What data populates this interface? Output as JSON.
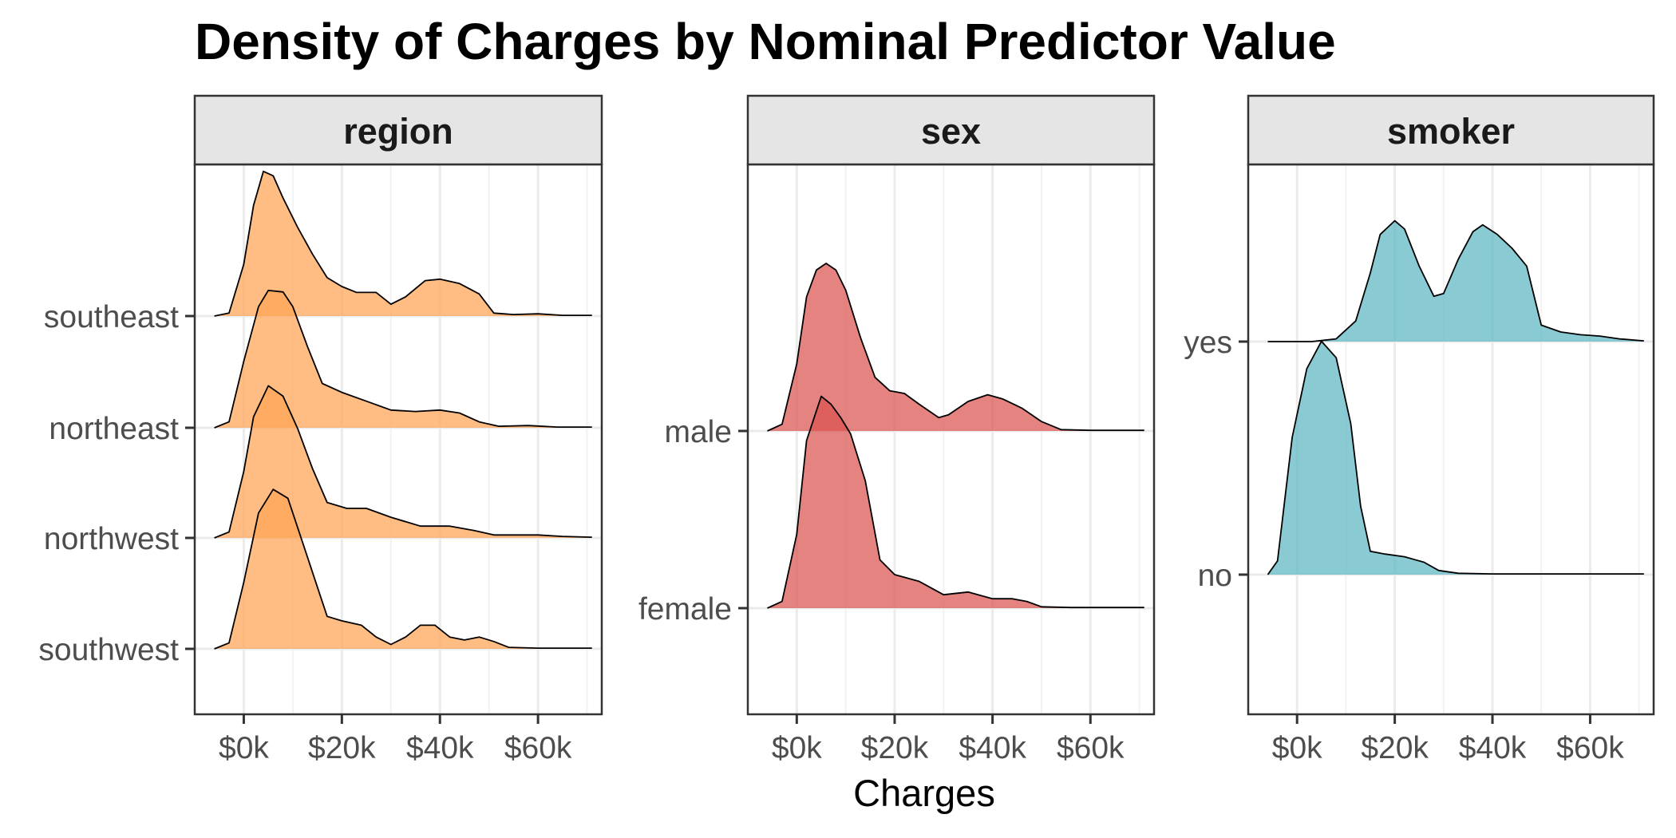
{
  "chart_data": {
    "type": "area",
    "subtype": "ridgeline-density",
    "title": "Density of Charges by Nominal Predictor Value",
    "xlabel": "Charges",
    "ylabel": "",
    "xlim": [
      -10000,
      73000
    ],
    "x_ticks": [
      0,
      20000,
      40000,
      60000
    ],
    "x_tick_labels": [
      "$0k",
      "$20k",
      "$40k",
      "$60k"
    ],
    "grid": true,
    "legend": "none",
    "panels": [
      {
        "strip": "region",
        "color": "#FFA354",
        "categories": [
          "southeast",
          "northeast",
          "northwest",
          "southwest"
        ],
        "series": [
          {
            "name": "southeast",
            "points": [
              [
                -6000,
                0
              ],
              [
                -3000,
                0.02
              ],
              [
                0,
                0.35
              ],
              [
                2000,
                0.75
              ],
              [
                4000,
                0.98
              ],
              [
                6000,
                0.95
              ],
              [
                8000,
                0.8
              ],
              [
                11000,
                0.6
              ],
              [
                14000,
                0.42
              ],
              [
                17000,
                0.26
              ],
              [
                20000,
                0.2
              ],
              [
                23000,
                0.16
              ],
              [
                27000,
                0.16
              ],
              [
                30000,
                0.08
              ],
              [
                33000,
                0.13
              ],
              [
                37000,
                0.24
              ],
              [
                40000,
                0.25
              ],
              [
                44000,
                0.22
              ],
              [
                48000,
                0.15
              ],
              [
                51000,
                0.02
              ],
              [
                55000,
                0.01
              ],
              [
                60000,
                0.015
              ],
              [
                65000,
                0.005
              ],
              [
                71000,
                0.005
              ]
            ]
          },
          {
            "name": "northeast",
            "points": [
              [
                -6000,
                0
              ],
              [
                -3000,
                0.04
              ],
              [
                0,
                0.45
              ],
              [
                3000,
                0.82
              ],
              [
                5000,
                0.93
              ],
              [
                8000,
                0.92
              ],
              [
                10000,
                0.82
              ],
              [
                13000,
                0.55
              ],
              [
                16000,
                0.3
              ],
              [
                20000,
                0.24
              ],
              [
                25000,
                0.18
              ],
              [
                30000,
                0.12
              ],
              [
                35000,
                0.11
              ],
              [
                40000,
                0.12
              ],
              [
                44000,
                0.1
              ],
              [
                48000,
                0.04
              ],
              [
                52000,
                0.01
              ],
              [
                58000,
                0.015
              ],
              [
                64000,
                0.005
              ],
              [
                71000,
                0.005
              ]
            ]
          },
          {
            "name": "northwest",
            "points": [
              [
                -6000,
                0
              ],
              [
                -3000,
                0.04
              ],
              [
                0,
                0.45
              ],
              [
                2000,
                0.82
              ],
              [
                5000,
                1.03
              ],
              [
                8000,
                0.96
              ],
              [
                11000,
                0.74
              ],
              [
                14000,
                0.47
              ],
              [
                17000,
                0.24
              ],
              [
                21000,
                0.2
              ],
              [
                25000,
                0.2
              ],
              [
                30000,
                0.14
              ],
              [
                36000,
                0.08
              ],
              [
                42000,
                0.08
              ],
              [
                47000,
                0.05
              ],
              [
                51000,
                0.02
              ],
              [
                56000,
                0.02
              ],
              [
                60000,
                0.02
              ],
              [
                65000,
                0.01
              ],
              [
                71000,
                0.005
              ]
            ]
          },
          {
            "name": "southwest",
            "points": [
              [
                -6000,
                0
              ],
              [
                -3000,
                0.04
              ],
              [
                0,
                0.45
              ],
              [
                3000,
                0.92
              ],
              [
                6000,
                1.08
              ],
              [
                9000,
                1.02
              ],
              [
                12000,
                0.72
              ],
              [
                15000,
                0.42
              ],
              [
                17000,
                0.22
              ],
              [
                20000,
                0.19
              ],
              [
                24000,
                0.16
              ],
              [
                27000,
                0.08
              ],
              [
                30000,
                0.03
              ],
              [
                33000,
                0.08
              ],
              [
                36000,
                0.16
              ],
              [
                39000,
                0.16
              ],
              [
                42000,
                0.08
              ],
              [
                45000,
                0.06
              ],
              [
                48000,
                0.08
              ],
              [
                51000,
                0.05
              ],
              [
                54000,
                0.01
              ],
              [
                60000,
                0.005
              ],
              [
                71000,
                0.005
              ]
            ]
          }
        ]
      },
      {
        "strip": "sex",
        "color": "#D9534F",
        "categories": [
          "male",
          "female"
        ],
        "series": [
          {
            "name": "male",
            "points": [
              [
                -6000,
                0
              ],
              [
                -3000,
                0.05
              ],
              [
                0,
                0.5
              ],
              [
                2000,
                1.0
              ],
              [
                4000,
                1.2
              ],
              [
                6000,
                1.25
              ],
              [
                8000,
                1.2
              ],
              [
                10000,
                1.05
              ],
              [
                13000,
                0.7
              ],
              [
                16000,
                0.4
              ],
              [
                19000,
                0.3
              ],
              [
                22000,
                0.28
              ],
              [
                25000,
                0.2
              ],
              [
                29000,
                0.1
              ],
              [
                31000,
                0.12
              ],
              [
                35000,
                0.22
              ],
              [
                39000,
                0.27
              ],
              [
                42000,
                0.24
              ],
              [
                46000,
                0.17
              ],
              [
                50000,
                0.07
              ],
              [
                54000,
                0.01
              ],
              [
                60000,
                0.005
              ],
              [
                71000,
                0.005
              ]
            ]
          },
          {
            "name": "female",
            "points": [
              [
                -6000,
                0
              ],
              [
                -3000,
                0.05
              ],
              [
                0,
                0.55
              ],
              [
                2000,
                1.25
              ],
              [
                5000,
                1.58
              ],
              [
                7000,
                1.52
              ],
              [
                9000,
                1.42
              ],
              [
                11000,
                1.3
              ],
              [
                14000,
                0.95
              ],
              [
                17000,
                0.36
              ],
              [
                20000,
                0.25
              ],
              [
                25000,
                0.2
              ],
              [
                30000,
                0.1
              ],
              [
                35000,
                0.12
              ],
              [
                40000,
                0.07
              ],
              [
                44000,
                0.07
              ],
              [
                47000,
                0.05
              ],
              [
                50000,
                0.01
              ],
              [
                56000,
                0.005
              ],
              [
                71000,
                0.005
              ]
            ]
          }
        ]
      },
      {
        "strip": "smoker",
        "color": "#5BB5C2",
        "categories": [
          "yes",
          "no"
        ],
        "series": [
          {
            "name": "yes",
            "points": [
              [
                -6000,
                0
              ],
              [
                3000,
                0
              ],
              [
                8000,
                0.02
              ],
              [
                12000,
                0.15
              ],
              [
                15000,
                0.5
              ],
              [
                17000,
                0.78
              ],
              [
                20000,
                0.88
              ],
              [
                22000,
                0.82
              ],
              [
                25000,
                0.55
              ],
              [
                28000,
                0.33
              ],
              [
                30000,
                0.35
              ],
              [
                33000,
                0.6
              ],
              [
                36000,
                0.8
              ],
              [
                38000,
                0.85
              ],
              [
                41000,
                0.78
              ],
              [
                44000,
                0.68
              ],
              [
                47000,
                0.55
              ],
              [
                50000,
                0.12
              ],
              [
                54000,
                0.07
              ],
              [
                58000,
                0.05
              ],
              [
                62000,
                0.04
              ],
              [
                66000,
                0.02
              ],
              [
                71000,
                0.005
              ]
            ]
          },
          {
            "name": "no",
            "points": [
              [
                -6000,
                0
              ],
              [
                -4000,
                0.1
              ],
              [
                -1000,
                1.0
              ],
              [
                2000,
                1.5
              ],
              [
                5000,
                1.7
              ],
              [
                8000,
                1.58
              ],
              [
                11000,
                1.1
              ],
              [
                13000,
                0.5
              ],
              [
                15000,
                0.17
              ],
              [
                18000,
                0.15
              ],
              [
                22000,
                0.13
              ],
              [
                26000,
                0.09
              ],
              [
                29000,
                0.03
              ],
              [
                33000,
                0.01
              ],
              [
                40000,
                0.005
              ],
              [
                71000,
                0.005
              ]
            ]
          }
        ]
      }
    ]
  }
}
